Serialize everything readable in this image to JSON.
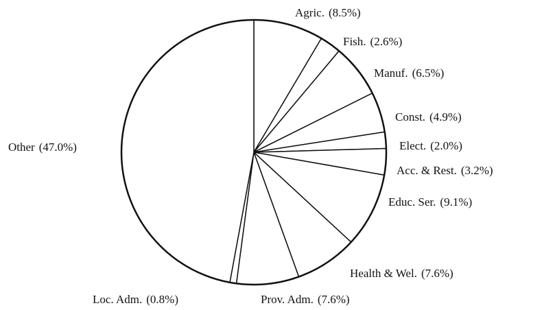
{
  "chart_data": {
    "type": "pie",
    "categories": [
      "Agric.",
      "Fish.",
      "Manuf.",
      "Const.",
      "Elect.",
      "Acc. & Rest.",
      "Educ. Ser.",
      "Health & Wel.",
      "Prov. Adm.",
      "Loc. Adm.",
      "Other"
    ],
    "values": [
      8.5,
      2.6,
      6.5,
      4.9,
      2.0,
      3.2,
      9.1,
      7.6,
      7.6,
      0.8,
      47.0
    ],
    "value_labels": [
      "(8.5%)",
      "(2.6%)",
      "(6.5%)",
      "(4.9%)",
      "(2.0%)",
      "(3.2%)",
      "(9.1%)",
      "(7.6%)",
      "(7.6%)",
      "(0.8%)",
      "(47.0%)"
    ],
    "color": "#ffffff"
  }
}
